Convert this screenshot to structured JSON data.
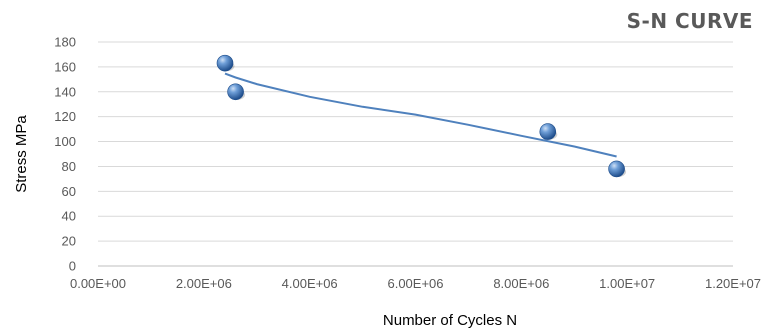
{
  "chart_data": {
    "type": "scatter",
    "title": "S-N CURVE",
    "xlabel": "Number of Cycles  N",
    "ylabel": "Stress MPa",
    "xlim": [
      0,
      12000000
    ],
    "ylim": [
      0,
      180
    ],
    "x_ticks": [
      0,
      2000000,
      4000000,
      6000000,
      8000000,
      10000000,
      12000000
    ],
    "x_tick_labels": [
      "0.00E+00",
      "2.00E+06",
      "4.00E+06",
      "6.00E+06",
      "8.00E+06",
      "1.00E+07",
      "1.20E+07"
    ],
    "y_ticks": [
      0,
      20,
      40,
      60,
      80,
      100,
      120,
      140,
      160,
      180
    ],
    "y_tick_labels": [
      "0",
      "20",
      "40",
      "60",
      "80",
      "100",
      "120",
      "140",
      "160",
      "180"
    ],
    "grid": "horizontal",
    "legend": "none",
    "series": [
      {
        "points": [
          {
            "x": 2400000,
            "y": 163
          },
          {
            "x": 2600000,
            "y": 140
          },
          {
            "x": 8500000,
            "y": 108
          },
          {
            "x": 9800000,
            "y": 78
          }
        ],
        "marker_color": "#4f81bd"
      }
    ],
    "trendline": {
      "type": "power",
      "x": [
        2400000,
        2600000,
        3000000,
        4000000,
        5000000,
        6000000,
        7000000,
        8000000,
        9000000,
        9800000
      ],
      "y": [
        154.6,
        151.5,
        146.2,
        136.0,
        127.9,
        121.7,
        113.5,
        104.6,
        96.0,
        88.0
      ],
      "color": "#4f81bd"
    }
  }
}
